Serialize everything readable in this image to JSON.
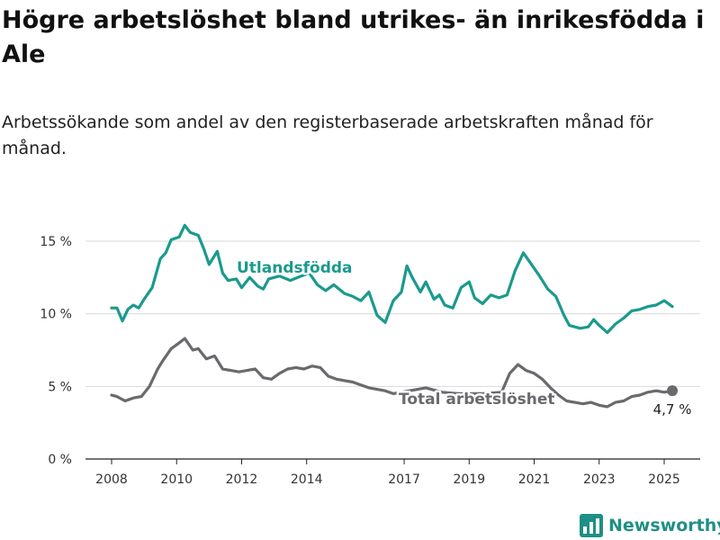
{
  "header": {
    "title": "Högre arbetslöshet bland utrikes- än inrikesfödda i Ale",
    "subtitle": "Arbetssökande som andel av den registerbaserade arbetskraften månad för månad."
  },
  "brand": {
    "name": "Newsworthy",
    "icon": "bar-chart-logo-icon",
    "color": "#1f8f86"
  },
  "chart_data": {
    "type": "line",
    "ylim": [
      0,
      16
    ],
    "y_ticks": [
      0,
      5,
      10,
      15
    ],
    "y_tick_labels": [
      "0 %",
      "5 %",
      "10 %",
      "15 %"
    ],
    "x_ticks": [
      2008,
      2010,
      2012,
      2014,
      2017,
      2019,
      2021,
      2023,
      2025
    ],
    "x_tick_labels": [
      "2008",
      "2010",
      "2012",
      "2014",
      "2017",
      "2019",
      "2021",
      "2023",
      "2025"
    ],
    "grid": true,
    "series": [
      {
        "name": "Utlandsfödda",
        "color": "#1a9a8d",
        "points": [
          [
            "2008-01",
            10.4
          ],
          [
            "2008-03",
            10.4
          ],
          [
            "2008-05",
            9.5
          ],
          [
            "2008-07",
            10.3
          ],
          [
            "2008-09",
            10.6
          ],
          [
            "2008-11",
            10.4
          ],
          [
            "2009-01",
            11.0
          ],
          [
            "2009-04",
            11.8
          ],
          [
            "2009-07",
            13.8
          ],
          [
            "2009-09",
            14.2
          ],
          [
            "2009-11",
            15.1
          ],
          [
            "2010-02",
            15.3
          ],
          [
            "2010-04",
            16.1
          ],
          [
            "2010-06",
            15.6
          ],
          [
            "2010-09",
            15.4
          ],
          [
            "2010-11",
            14.5
          ],
          [
            "2011-01",
            13.4
          ],
          [
            "2011-04",
            14.3
          ],
          [
            "2011-06",
            12.8
          ],
          [
            "2011-08",
            12.3
          ],
          [
            "2011-11",
            12.4
          ],
          [
            "2012-01",
            11.8
          ],
          [
            "2012-04",
            12.5
          ],
          [
            "2012-07",
            11.9
          ],
          [
            "2012-09",
            11.7
          ],
          [
            "2012-11",
            12.4
          ],
          [
            "2013-03",
            12.6
          ],
          [
            "2013-07",
            12.3
          ],
          [
            "2013-11",
            12.6
          ],
          [
            "2014-02",
            12.8
          ],
          [
            "2014-05",
            12.0
          ],
          [
            "2014-08",
            11.6
          ],
          [
            "2014-11",
            12.0
          ],
          [
            "2015-03",
            11.4
          ],
          [
            "2015-06",
            11.2
          ],
          [
            "2015-09",
            10.9
          ],
          [
            "2015-12",
            11.5
          ],
          [
            "2016-03",
            9.9
          ],
          [
            "2016-06",
            9.4
          ],
          [
            "2016-09",
            10.9
          ],
          [
            "2016-12",
            11.5
          ],
          [
            "2017-02",
            13.3
          ],
          [
            "2017-04",
            12.5
          ],
          [
            "2017-07",
            11.5
          ],
          [
            "2017-09",
            12.2
          ],
          [
            "2017-12",
            11.0
          ],
          [
            "2018-02",
            11.3
          ],
          [
            "2018-04",
            10.6
          ],
          [
            "2018-07",
            10.4
          ],
          [
            "2018-10",
            11.8
          ],
          [
            "2019-01",
            12.2
          ],
          [
            "2019-03",
            11.1
          ],
          [
            "2019-06",
            10.7
          ],
          [
            "2019-09",
            11.3
          ],
          [
            "2019-12",
            11.1
          ],
          [
            "2020-03",
            11.3
          ],
          [
            "2020-06",
            13.0
          ],
          [
            "2020-09",
            14.2
          ],
          [
            "2020-12",
            13.4
          ],
          [
            "2021-03",
            12.6
          ],
          [
            "2021-06",
            11.7
          ],
          [
            "2021-09",
            11.2
          ],
          [
            "2021-12",
            9.9
          ],
          [
            "2022-02",
            9.2
          ],
          [
            "2022-06",
            9.0
          ],
          [
            "2022-09",
            9.1
          ],
          [
            "2022-11",
            9.6
          ],
          [
            "2023-01",
            9.2
          ],
          [
            "2023-04",
            8.7
          ],
          [
            "2023-07",
            9.3
          ],
          [
            "2023-10",
            9.7
          ],
          [
            "2024-01",
            10.2
          ],
          [
            "2024-04",
            10.3
          ],
          [
            "2024-07",
            10.5
          ],
          [
            "2024-10",
            10.6
          ],
          [
            "2025-01",
            10.9
          ],
          [
            "2025-04",
            10.5
          ]
        ]
      },
      {
        "name": "Total arbetslöshet",
        "color": "#6a6a6e",
        "end_label": "4,7 %",
        "points": [
          [
            "2008-01",
            4.4
          ],
          [
            "2008-03",
            4.3
          ],
          [
            "2008-06",
            4.0
          ],
          [
            "2008-09",
            4.2
          ],
          [
            "2008-12",
            4.3
          ],
          [
            "2009-03",
            5.0
          ],
          [
            "2009-06",
            6.2
          ],
          [
            "2009-08",
            6.8
          ],
          [
            "2009-11",
            7.6
          ],
          [
            "2010-02",
            8.0
          ],
          [
            "2010-04",
            8.3
          ],
          [
            "2010-07",
            7.5
          ],
          [
            "2010-09",
            7.6
          ],
          [
            "2010-12",
            6.9
          ],
          [
            "2011-03",
            7.1
          ],
          [
            "2011-06",
            6.2
          ],
          [
            "2011-09",
            6.1
          ],
          [
            "2011-12",
            6.0
          ],
          [
            "2012-03",
            6.1
          ],
          [
            "2012-06",
            6.2
          ],
          [
            "2012-09",
            5.6
          ],
          [
            "2012-12",
            5.5
          ],
          [
            "2013-03",
            5.9
          ],
          [
            "2013-06",
            6.2
          ],
          [
            "2013-09",
            6.3
          ],
          [
            "2013-12",
            6.2
          ],
          [
            "2014-03",
            6.4
          ],
          [
            "2014-06",
            6.3
          ],
          [
            "2014-09",
            5.7
          ],
          [
            "2014-12",
            5.5
          ],
          [
            "2015-03",
            5.4
          ],
          [
            "2015-06",
            5.3
          ],
          [
            "2015-09",
            5.1
          ],
          [
            "2015-12",
            4.9
          ],
          [
            "2016-03",
            4.8
          ],
          [
            "2016-06",
            4.7
          ],
          [
            "2016-09",
            4.5
          ],
          [
            "2016-12",
            4.6
          ],
          [
            "2017-06",
            4.8
          ],
          [
            "2017-09",
            4.9
          ],
          [
            "2018-03",
            4.6
          ],
          [
            "2018-09",
            4.5
          ],
          [
            "2019-06",
            4.5
          ],
          [
            "2020-01",
            4.6
          ],
          [
            "2020-04",
            5.9
          ],
          [
            "2020-07",
            6.5
          ],
          [
            "2020-10",
            6.1
          ],
          [
            "2021-01",
            5.9
          ],
          [
            "2021-04",
            5.5
          ],
          [
            "2021-07",
            4.9
          ],
          [
            "2021-10",
            4.4
          ],
          [
            "2022-01",
            4.0
          ],
          [
            "2022-04",
            3.9
          ],
          [
            "2022-07",
            3.8
          ],
          [
            "2022-10",
            3.9
          ],
          [
            "2023-01",
            3.7
          ],
          [
            "2023-04",
            3.6
          ],
          [
            "2023-07",
            3.9
          ],
          [
            "2023-10",
            4.0
          ],
          [
            "2024-01",
            4.3
          ],
          [
            "2024-04",
            4.4
          ],
          [
            "2024-07",
            4.6
          ],
          [
            "2024-10",
            4.7
          ],
          [
            "2025-01",
            4.6
          ],
          [
            "2025-04",
            4.7
          ]
        ]
      }
    ]
  }
}
